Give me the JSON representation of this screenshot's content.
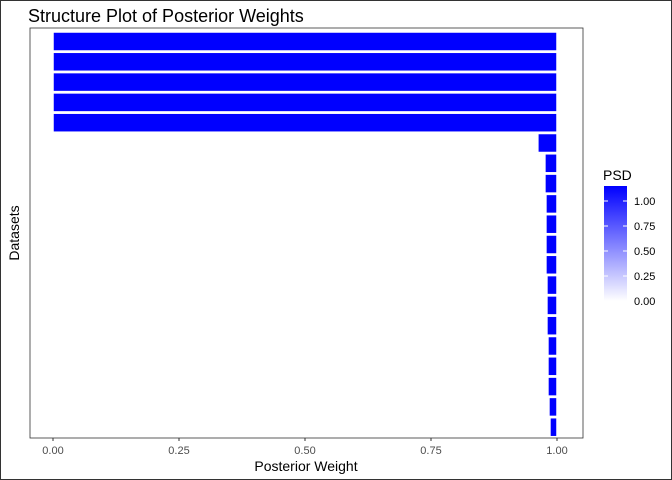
{
  "chart_data": {
    "type": "bar",
    "orientation": "horizontal",
    "title": "Structure Plot of Posterior Weights",
    "xlabel": "Posterior Weight",
    "ylabel": "Datasets",
    "xlim": [
      0,
      1
    ],
    "x_ticks": [
      "0.00",
      "0.25",
      "0.50",
      "0.75",
      "1.00"
    ],
    "x_tick_values": [
      0,
      0.25,
      0.5,
      0.75,
      1.0
    ],
    "grid": false,
    "bar_color": "#0000ff",
    "bar_outline_color": "#ffffff",
    "bars": [
      {
        "start": 0.0,
        "end": 1.0,
        "psd": 1.0
      },
      {
        "start": 0.0,
        "end": 1.0,
        "psd": 1.0
      },
      {
        "start": 0.0,
        "end": 1.0,
        "psd": 1.0
      },
      {
        "start": 0.0,
        "end": 1.0,
        "psd": 1.0
      },
      {
        "start": 0.0,
        "end": 1.0,
        "psd": 1.0
      },
      {
        "start": 0.962,
        "end": 1.0,
        "psd": 1.0
      },
      {
        "start": 0.976,
        "end": 1.0,
        "psd": 1.0
      },
      {
        "start": 0.976,
        "end": 1.0,
        "psd": 1.0
      },
      {
        "start": 0.978,
        "end": 1.0,
        "psd": 1.0
      },
      {
        "start": 0.978,
        "end": 1.0,
        "psd": 1.0
      },
      {
        "start": 0.978,
        "end": 1.0,
        "psd": 1.0
      },
      {
        "start": 0.978,
        "end": 1.0,
        "psd": 1.0
      },
      {
        "start": 0.98,
        "end": 1.0,
        "psd": 1.0
      },
      {
        "start": 0.98,
        "end": 1.0,
        "psd": 1.0
      },
      {
        "start": 0.98,
        "end": 1.0,
        "psd": 1.0
      },
      {
        "start": 0.982,
        "end": 1.0,
        "psd": 1.0
      },
      {
        "start": 0.982,
        "end": 1.0,
        "psd": 1.0
      },
      {
        "start": 0.982,
        "end": 1.0,
        "psd": 1.0
      },
      {
        "start": 0.984,
        "end": 1.0,
        "psd": 1.0
      },
      {
        "start": 0.986,
        "end": 1.0,
        "psd": 1.0
      }
    ],
    "legend": {
      "title": "PSD",
      "placement": "right",
      "type": "colorbar",
      "low_color": "#ffffff",
      "high_color": "#0000ff",
      "range": [
        0,
        1.15
      ],
      "tick_values": [
        0,
        0.25,
        0.5,
        0.75,
        1.0
      ],
      "tick_labels": [
        "0.00",
        "0.25",
        "0.50",
        "0.75",
        "1.00"
      ]
    }
  }
}
